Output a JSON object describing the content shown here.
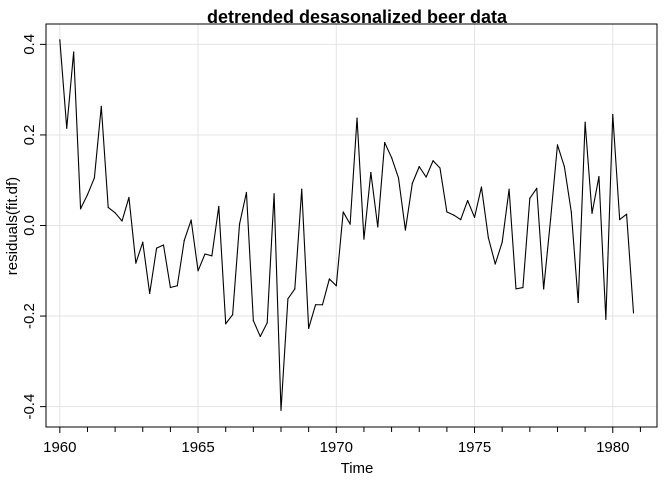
{
  "chart_data": {
    "type": "line",
    "title": "detrended desasonalized beer data",
    "xlabel": "Time",
    "ylabel": "residuals(fit.df)",
    "xlim": [
      1959.5,
      1981.6
    ],
    "ylim": [
      -0.445,
      0.445
    ],
    "grid": true,
    "x_ticks": [
      1960,
      1965,
      1970,
      1975,
      1980
    ],
    "x_minor_ticks": [
      1961,
      1962,
      1963,
      1964,
      1966,
      1967,
      1968,
      1969,
      1971,
      1972,
      1973,
      1974,
      1976,
      1977,
      1978,
      1979,
      1981
    ],
    "y_ticks": [
      -0.4,
      -0.2,
      0.0,
      0.2,
      0.4
    ],
    "y_tick_labels": [
      "-0.4",
      "-0.2",
      "0.0",
      "0.2",
      "0.4"
    ],
    "series": [
      {
        "x_start": 1960,
        "x_step": 0.25,
        "values": [
          0.41,
          0.215,
          0.383,
          0.037,
          0.068,
          0.105,
          0.263,
          0.04,
          0.028,
          0.01,
          0.062,
          -0.083,
          -0.037,
          -0.15,
          -0.05,
          -0.043,
          -0.137,
          -0.133,
          -0.033,
          0.012,
          -0.1,
          -0.063,
          -0.067,
          0.042,
          -0.217,
          -0.197,
          0.003,
          0.073,
          -0.21,
          -0.245,
          -0.215,
          0.07,
          -0.408,
          -0.162,
          -0.14,
          0.08,
          -0.227,
          -0.175,
          -0.175,
          -0.118,
          -0.133,
          0.03,
          0.003,
          0.237,
          -0.03,
          0.117,
          -0.003,
          0.183,
          0.15,
          0.105,
          -0.01,
          0.093,
          0.13,
          0.107,
          0.143,
          0.127,
          0.03,
          0.023,
          0.013,
          0.055,
          0.018,
          0.085,
          -0.027,
          -0.085,
          -0.037,
          0.08,
          -0.14,
          -0.137,
          0.06,
          0.082,
          -0.14,
          0.013,
          0.178,
          0.13,
          0.03,
          -0.17,
          0.228,
          0.027,
          0.108,
          -0.207,
          0.245,
          0.013,
          0.025,
          -0.193
        ]
      }
    ]
  }
}
